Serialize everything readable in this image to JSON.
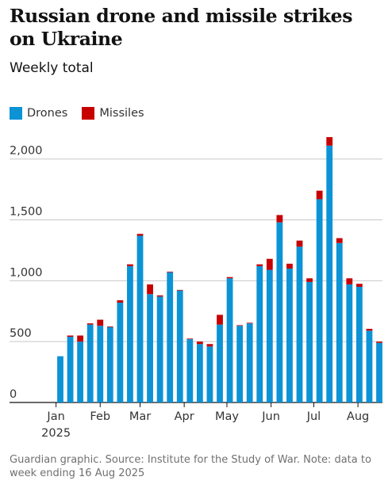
{
  "header": {
    "title": "Russian drone and missile strikes on Ukraine",
    "subtitle": "Weekly total"
  },
  "legend": [
    {
      "label": "Drones",
      "color": "#0c93d6"
    },
    {
      "label": "Missiles",
      "color": "#c70000"
    }
  ],
  "footer": {
    "source": "Guardian graphic. Source: Institute for the Study of War. Note: data to week ending 16 Aug 2025"
  },
  "chart_data": {
    "type": "bar",
    "stacked": true,
    "title": "Russian drone and missile strikes on Ukraine",
    "subtitle": "Weekly total",
    "ylim": [
      0,
      2200
    ],
    "yticks": [
      0,
      500,
      1000,
      1500,
      2000
    ],
    "ytick_labels": [
      "0",
      "500",
      "1,000",
      "1,500",
      "2,000"
    ],
    "grid": true,
    "legend_position": "top-left",
    "month_labels": [
      {
        "label": "Jan",
        "sublabel": "2025",
        "date": "2025-01-01"
      },
      {
        "label": "Feb",
        "date": "2025-02-01"
      },
      {
        "label": "Mar",
        "date": "2025-03-01"
      },
      {
        "label": "Apr",
        "date": "2025-04-01"
      },
      {
        "label": "May",
        "date": "2025-05-01"
      },
      {
        "label": "Jun",
        "date": "2025-06-01"
      },
      {
        "label": "Jul",
        "date": "2025-07-01"
      },
      {
        "label": "Aug",
        "date": "2025-08-01"
      }
    ],
    "x": [
      "2025-01-04",
      "2025-01-11",
      "2025-01-18",
      "2025-01-25",
      "2025-02-01",
      "2025-02-08",
      "2025-02-15",
      "2025-02-22",
      "2025-03-01",
      "2025-03-08",
      "2025-03-15",
      "2025-03-22",
      "2025-03-29",
      "2025-04-05",
      "2025-04-12",
      "2025-04-19",
      "2025-04-26",
      "2025-05-03",
      "2025-05-10",
      "2025-05-17",
      "2025-05-24",
      "2025-05-31",
      "2025-06-07",
      "2025-06-14",
      "2025-06-21",
      "2025-06-28",
      "2025-07-05",
      "2025-07-12",
      "2025-07-19",
      "2025-07-26",
      "2025-08-02",
      "2025-08-09",
      "2025-08-16"
    ],
    "series": [
      {
        "name": "Drones",
        "color": "#0c93d6",
        "values": [
          380,
          540,
          500,
          640,
          630,
          620,
          820,
          1120,
          1370,
          890,
          870,
          1070,
          920,
          520,
          480,
          460,
          640,
          1020,
          630,
          650,
          1120,
          1090,
          1480,
          1100,
          1280,
          990,
          1670,
          2110,
          1310,
          970,
          950,
          590,
          490
        ]
      },
      {
        "name": "Missiles",
        "color": "#c70000",
        "values": [
          0,
          10,
          50,
          10,
          50,
          5,
          20,
          15,
          15,
          80,
          10,
          5,
          5,
          5,
          20,
          20,
          80,
          10,
          5,
          5,
          15,
          90,
          60,
          40,
          50,
          30,
          70,
          70,
          40,
          50,
          25,
          15,
          10
        ]
      }
    ]
  }
}
